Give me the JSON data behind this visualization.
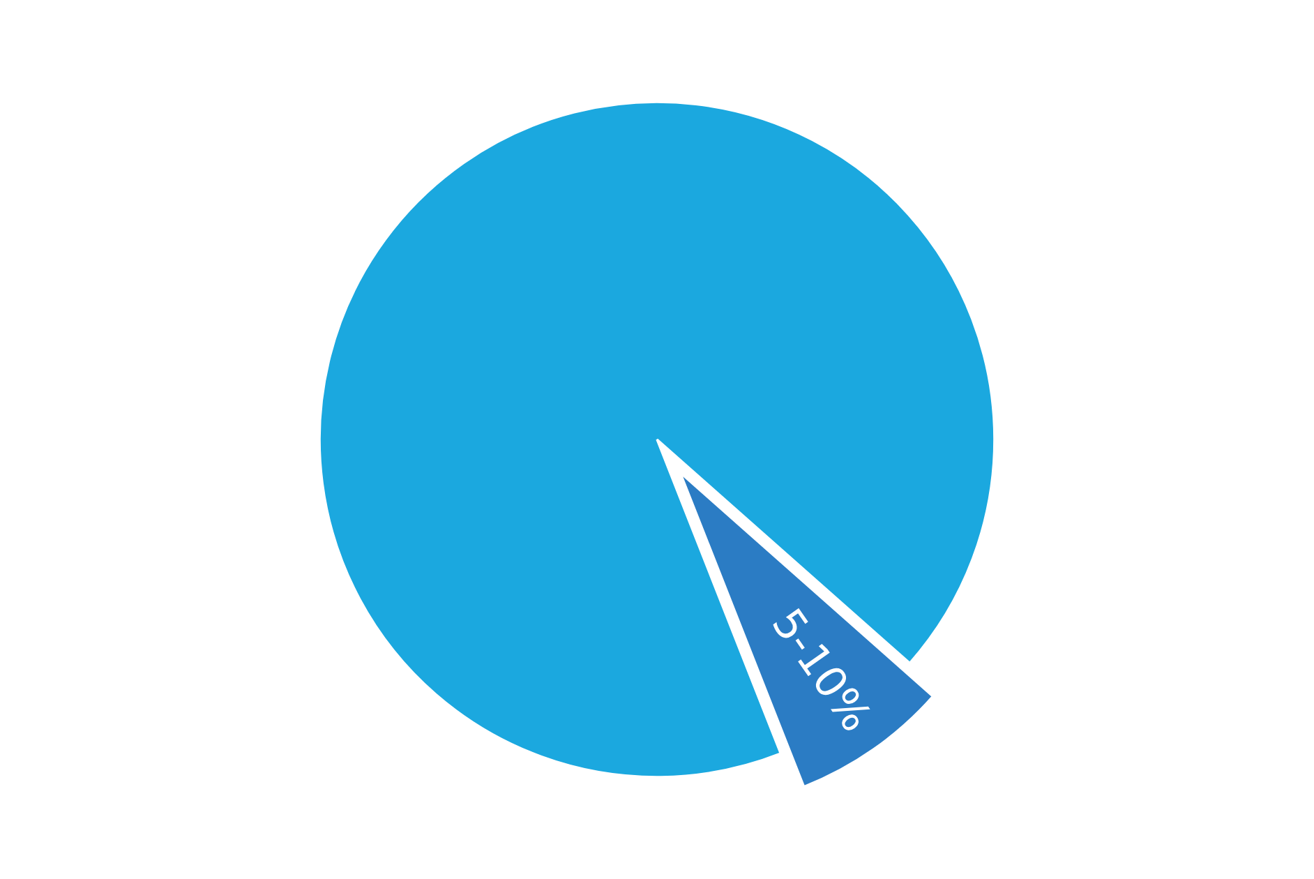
{
  "chart_data": {
    "type": "pie",
    "categories": [
      null,
      "5-10%"
    ],
    "values": [
      92.5,
      7.5
    ],
    "colors": [
      "#1ba8df",
      "#2b7cc4"
    ],
    "legend": false
  }
}
